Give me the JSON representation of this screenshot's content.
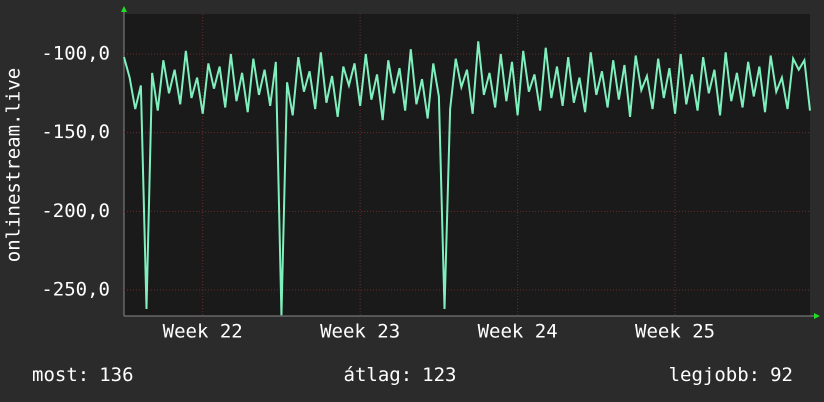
{
  "chart_data": {
    "type": "line",
    "y_label": "onlinestream.live",
    "x": [
      0,
      0.25,
      0.5,
      0.75,
      1,
      1.25,
      1.5,
      1.75,
      2,
      2.25,
      2.5,
      2.75,
      3,
      3.25,
      3.5,
      3.75,
      4,
      4.25,
      4.5,
      4.75,
      5,
      5.25,
      5.5,
      5.75,
      6,
      6.25,
      6.5,
      6.75,
      7,
      7.25,
      7.5,
      7.75,
      8,
      8.25,
      8.5,
      8.75,
      9,
      9.25,
      9.5,
      9.75,
      10,
      10.25,
      10.5,
      10.75,
      11,
      11.25,
      11.5,
      11.75,
      12,
      12.25,
      12.5,
      12.75,
      13,
      13.25,
      13.5,
      13.75,
      14,
      14.25,
      14.5,
      14.75,
      15,
      15.25,
      15.5,
      15.75,
      16,
      16.25,
      16.5,
      16.75,
      17,
      17.25,
      17.5,
      17.75,
      18,
      18.25,
      18.5,
      18.75,
      19,
      19.25,
      19.5,
      19.75,
      20,
      20.25,
      20.5,
      20.75,
      21,
      21.25,
      21.5,
      21.75,
      22,
      22.25,
      22.5,
      22.75,
      23,
      23.25,
      23.5,
      23.75,
      24,
      24.25,
      24.5,
      24.75,
      25,
      25.25,
      25.5,
      25.75,
      26,
      26.25,
      26.5,
      26.75,
      27,
      27.25,
      27.5,
      27.75,
      28,
      28.25,
      28.5,
      28.75,
      29,
      29.25,
      29.5,
      29.75,
      30,
      30.25,
      30.5
    ],
    "series": [
      {
        "name": "onlinestream.live",
        "color": "#7ff0bd",
        "values": [
          -102,
          -115,
          -135,
          -120,
          -262,
          -112,
          -136,
          -104,
          -125,
          -110,
          -132,
          -98,
          -128,
          -115,
          -138,
          -106,
          -122,
          -108,
          -134,
          -100,
          -130,
          -112,
          -137,
          -103,
          -126,
          -110,
          -133,
          -105,
          -266,
          -118,
          -139,
          -102,
          -124,
          -111,
          -135,
          -99,
          -131,
          -114,
          -140,
          -108,
          -120,
          -106,
          -133,
          -100,
          -129,
          -113,
          -142,
          -104,
          -125,
          -109,
          -136,
          -97,
          -132,
          -116,
          -141,
          -106,
          -127,
          -262,
          -135,
          -103,
          -121,
          -110,
          -138,
          -92,
          -126,
          -112,
          -134,
          -100,
          -130,
          -105,
          -139,
          -98,
          -124,
          -113,
          -136,
          -96,
          -128,
          -108,
          -133,
          -102,
          -131,
          -115,
          -137,
          -99,
          -126,
          -111,
          -134,
          -104,
          -129,
          -107,
          -140,
          -101,
          -123,
          -114,
          -135,
          -103,
          -128,
          -109,
          -138,
          -100,
          -132,
          -113,
          -136,
          -102,
          -125,
          -110,
          -139,
          -99,
          -130,
          -112,
          -134,
          -105,
          -127,
          -108,
          -137,
          -101,
          -124,
          -115,
          -135,
          -103,
          -110,
          -104,
          -136
        ]
      }
    ],
    "xlim": [
      0,
      30.5
    ],
    "xticks": [
      {
        "value": 3.5,
        "label": "Week 22"
      },
      {
        "value": 10.5,
        "label": "Week 23"
      },
      {
        "value": 17.5,
        "label": "Week 24"
      },
      {
        "value": 24.5,
        "label": "Week 25"
      }
    ],
    "ylim": [
      -266.5,
      -74.6
    ],
    "yticks": [
      {
        "value": -250,
        "label": "-250,0"
      },
      {
        "value": -200,
        "label": "-200,0"
      },
      {
        "value": -150,
        "label": "-150,0"
      },
      {
        "value": -100,
        "label": "-100,0"
      }
    ],
    "grid": true,
    "stats": [
      {
        "label": "most:",
        "value": 136
      },
      {
        "label": "átlag:",
        "value": 123
      },
      {
        "label": "legjobb:",
        "value": 92
      }
    ]
  }
}
